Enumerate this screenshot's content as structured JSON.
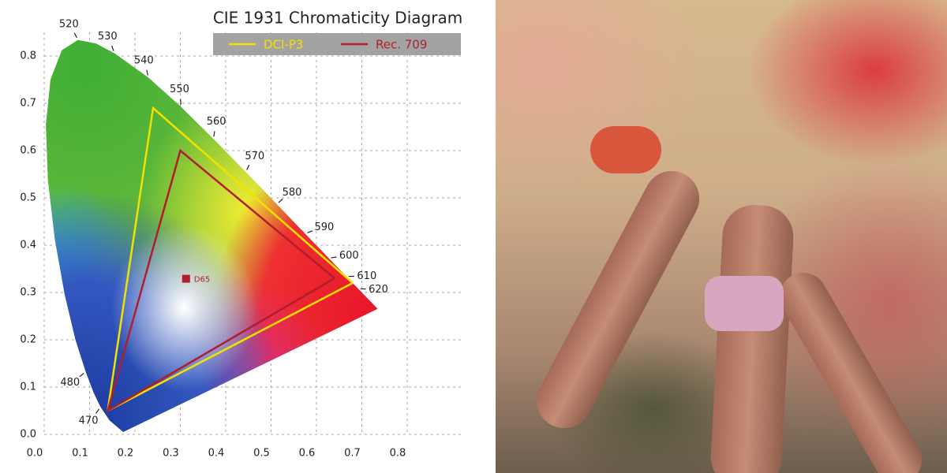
{
  "chart_data": {
    "type": "line",
    "title": "CIE 1931 Chromaticity Diagram",
    "xlim": [
      0,
      0.9
    ],
    "ylim": [
      0,
      0.85
    ],
    "xticks": [
      {
        "value": 0,
        "label": "0.0"
      },
      0.1,
      0.2,
      0.3,
      0.4,
      0.5,
      0.6,
      0.7,
      0.8
    ],
    "yticks": [
      {
        "value": 0,
        "label": "0.0"
      },
      0.1,
      0.2,
      0.3,
      0.4,
      0.5,
      0.6,
      0.7,
      0.8
    ],
    "grid": true,
    "series": [
      {
        "name": "DCI-P3",
        "color": "#f2e200",
        "x": [
          0.68,
          0.24,
          0.14,
          0.68
        ],
        "y": [
          0.32,
          0.69,
          0.05,
          0.32
        ]
      },
      {
        "name": "Rec. 709",
        "color": "#b01e2e",
        "x": [
          0.64,
          0.3,
          0.14,
          0.64
        ],
        "y": [
          0.33,
          0.6,
          0.05,
          0.33
        ]
      }
    ],
    "points": [
      {
        "label": "D65",
        "x": 0.3127,
        "y": 0.329,
        "color": "#b01e2e"
      }
    ],
    "locus": {
      "labels": [
        null,
        null,
        "470",
        null,
        "480",
        null,
        null,
        null,
        null,
        null,
        null,
        null,
        "520",
        null,
        "530",
        "540",
        "550",
        "560",
        "570",
        "580",
        "590",
        "600",
        "610",
        "620",
        null
      ],
      "x": [
        0.1741,
        0.144,
        0.1241,
        0.1096,
        0.0913,
        0.0687,
        0.0454,
        0.0235,
        0.0082,
        0.0039,
        0.0139,
        0.0389,
        0.0743,
        0.1142,
        0.1547,
        0.2296,
        0.3016,
        0.3731,
        0.4441,
        0.5125,
        0.5752,
        0.627,
        0.6658,
        0.6915,
        0.7347
      ],
      "y": [
        0.005,
        0.0297,
        0.0578,
        0.0868,
        0.1327,
        0.2007,
        0.295,
        0.4127,
        0.5384,
        0.6548,
        0.7502,
        0.812,
        0.8338,
        0.8262,
        0.8059,
        0.7543,
        0.6923,
        0.6245,
        0.5547,
        0.4866,
        0.4242,
        0.3725,
        0.334,
        0.3083,
        0.2653
      ]
    }
  }
}
